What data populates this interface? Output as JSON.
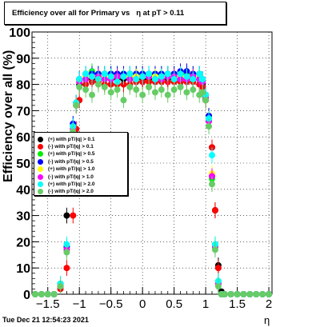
{
  "title": "Efficiency over all for Primary vs   η at pT > 0.11",
  "footer": "Tue Dec 21 12:54:23 2021",
  "chart_data": {
    "type": "scatter",
    "xlabel": "η",
    "ylabel": "Efficiency over all (%)",
    "xlim": [
      -1.75,
      2.05
    ],
    "ylim": [
      0,
      100
    ],
    "grid": true,
    "legend_position": "left",
    "x_ticks": [
      -1.5,
      -1,
      -0.5,
      0,
      0.5,
      1,
      1.5,
      2
    ],
    "x_tick_labels": [
      "−1.5",
      "−1",
      "−0.5",
      "0",
      "0.5",
      "1",
      "1.5",
      "2"
    ],
    "y_ticks": [
      0,
      10,
      20,
      30,
      40,
      50,
      60,
      70,
      80,
      90,
      100
    ],
    "y_tick_labels": [
      "0",
      "10",
      "20",
      "30",
      "40",
      "50",
      "60",
      "70",
      "80",
      "90",
      "100"
    ],
    "x": [
      -1.7,
      -1.6,
      -1.5,
      -1.4,
      -1.3,
      -1.2,
      -1.1,
      -1.05,
      -1.0,
      -0.9,
      -0.8,
      -0.7,
      -0.6,
      -0.5,
      -0.4,
      -0.3,
      -0.2,
      -0.1,
      0.0,
      0.1,
      0.2,
      0.3,
      0.4,
      0.5,
      0.6,
      0.7,
      0.8,
      0.9,
      0.95,
      1.0,
      1.05,
      1.1,
      1.15,
      1.2,
      1.25,
      1.3,
      1.4,
      1.5,
      1.6,
      1.7,
      1.8,
      1.9,
      2.0
    ],
    "series": [
      {
        "name": "(+) with pT/|q| > 0.1",
        "color": "#000000",
        "values": [
          0,
          0,
          0,
          0,
          4,
          30,
          62,
          72,
          80,
          82,
          82,
          82,
          82,
          82,
          82,
          82,
          82,
          82,
          82,
          82,
          82,
          82,
          82,
          82,
          82,
          82,
          82,
          82,
          80,
          74,
          66,
          56,
          32,
          11,
          1,
          0,
          0,
          0,
          0,
          0,
          0,
          0,
          0
        ]
      },
      {
        "name": "(-) with pT/|q| > 0.1",
        "color": "#ff0000",
        "values": [
          0,
          0,
          0,
          0,
          2,
          10,
          30,
          63,
          74,
          80,
          81,
          81,
          80,
          80,
          80,
          80,
          80,
          81,
          81,
          81,
          81,
          81,
          81,
          81,
          81,
          81,
          81,
          80,
          79,
          74,
          68,
          56,
          32,
          10,
          0,
          0,
          0,
          0,
          0,
          0,
          0,
          0,
          0
        ]
      },
      {
        "name": "(+) with pT/|q| > 0.5",
        "color": "#00ee00",
        "values": [
          0,
          0,
          0,
          0,
          3,
          17,
          64,
          73,
          82,
          84,
          85,
          84,
          84,
          84,
          84,
          84,
          84,
          84,
          84,
          84,
          84,
          84,
          84,
          84,
          84,
          84,
          84,
          84,
          82,
          76,
          68,
          44,
          19,
          5,
          0,
          0,
          0,
          0,
          0,
          0,
          0,
          0,
          0
        ]
      },
      {
        "name": "(-) with pT/|q| > 0.5",
        "color": "#0000ff",
        "values": [
          0,
          0,
          0,
          0,
          3,
          18,
          65,
          73,
          82,
          84,
          84,
          84,
          84,
          84,
          84,
          84,
          84,
          84,
          84,
          84,
          84,
          84,
          84,
          84,
          85,
          85,
          84,
          84,
          82,
          76,
          68,
          45,
          18,
          4,
          0,
          0,
          0,
          0,
          0,
          0,
          0,
          0,
          0
        ]
      },
      {
        "name": "(+) with pT/|q| > 1.0",
        "color": "#ffff00",
        "values": [
          0,
          0,
          0,
          0,
          3,
          17,
          63,
          72,
          81,
          83,
          83,
          83,
          83,
          83,
          83,
          83,
          83,
          83,
          83,
          83,
          83,
          83,
          83,
          83,
          83,
          83,
          83,
          83,
          81,
          75,
          67,
          46,
          18,
          4,
          0,
          0,
          0,
          0,
          0,
          0,
          0,
          0,
          0
        ]
      },
      {
        "name": "(-) with pT/|q| > 1.0",
        "color": "#ff00ff",
        "values": [
          0,
          0,
          0,
          0,
          3,
          17,
          63,
          72,
          81,
          82,
          83,
          83,
          82,
          82,
          83,
          83,
          82,
          82,
          83,
          83,
          82,
          82,
          83,
          83,
          82,
          82,
          83,
          82,
          81,
          75,
          66,
          45,
          18,
          4,
          0,
          0,
          0,
          0,
          0,
          0,
          0,
          0,
          0
        ]
      },
      {
        "name": "(+) with pT/|q| > 2.0",
        "color": "#00ffff",
        "values": [
          0,
          0,
          0,
          0,
          4,
          19,
          64,
          73,
          82,
          84,
          83,
          82,
          84,
          83,
          81,
          83,
          84,
          82,
          83,
          84,
          82,
          83,
          84,
          82,
          84,
          83,
          82,
          84,
          82,
          76,
          67,
          53,
          19,
          5,
          0,
          0,
          0,
          0,
          0,
          0,
          0,
          0,
          0
        ]
      },
      {
        "name": "(-) with pT/|q| > 2.0",
        "color": "#66cc66",
        "values": [
          0,
          0,
          0,
          0,
          3,
          16,
          62,
          72,
          79,
          78,
          76,
          80,
          79,
          77,
          78,
          74,
          79,
          78,
          76,
          79,
          77,
          78,
          76,
          78,
          79,
          77,
          78,
          76,
          77,
          74,
          64,
          42,
          17,
          3,
          0,
          0,
          0,
          0,
          0,
          0,
          0,
          0,
          0
        ]
      }
    ]
  }
}
